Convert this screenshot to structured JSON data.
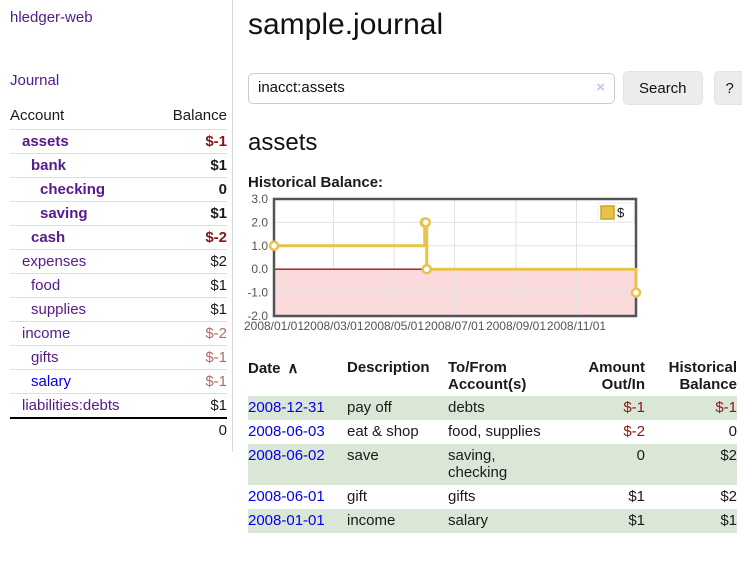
{
  "sidebar": {
    "brand": "hledger-web",
    "journal_link": "Journal",
    "accounts": {
      "col_account": "Account",
      "col_balance": "Balance",
      "rows": [
        {
          "name": "assets",
          "indent": 1,
          "bold": true,
          "balance": "$-1",
          "neg": "strong",
          "blue": false
        },
        {
          "name": "bank",
          "indent": 2,
          "bold": true,
          "balance": "$1",
          "neg": "",
          "blue": false
        },
        {
          "name": "checking",
          "indent": 3,
          "bold": true,
          "balance": "0",
          "neg": "",
          "blue": false
        },
        {
          "name": "saving",
          "indent": 3,
          "bold": true,
          "balance": "$1",
          "neg": "",
          "blue": false
        },
        {
          "name": "cash",
          "indent": 2,
          "bold": true,
          "balance": "$-2",
          "neg": "strong",
          "blue": false
        },
        {
          "name": "expenses",
          "indent": 1,
          "bold": false,
          "balance": "$2",
          "neg": "",
          "blue": false
        },
        {
          "name": "food",
          "indent": 2,
          "bold": false,
          "balance": "$1",
          "neg": "",
          "blue": false
        },
        {
          "name": "supplies",
          "indent": 2,
          "bold": false,
          "balance": "$1",
          "neg": "",
          "blue": false
        },
        {
          "name": "income",
          "indent": 1,
          "bold": false,
          "balance": "$-2",
          "neg": "soft",
          "blue": false
        },
        {
          "name": "gifts",
          "indent": 2,
          "bold": false,
          "balance": "$-1",
          "neg": "soft",
          "blue": false
        },
        {
          "name": "salary",
          "indent": 2,
          "bold": false,
          "balance": "$-1",
          "neg": "soft",
          "blue": true
        },
        {
          "name": "liabilities:debts",
          "indent": 1,
          "bold": false,
          "balance": "$1",
          "neg": "",
          "blue": false
        }
      ],
      "total": "0"
    }
  },
  "main": {
    "title": "sample.journal",
    "search": {
      "value": "inacct:assets",
      "clear_icon": "×",
      "button_label": "Search",
      "help_label": "?"
    },
    "account_heading": "assets",
    "section_label": "Historical Balance:"
  },
  "chart_data": {
    "type": "line",
    "step": true,
    "title": "Historical Balance:",
    "legend": {
      "label": "$",
      "position": "top-right"
    },
    "series": [
      {
        "name": "$",
        "color": "#e9c24a",
        "points": [
          {
            "date": "2008-01-01",
            "day": 0,
            "value": 1
          },
          {
            "date": "2008-06-01",
            "day": 152,
            "value": 2
          },
          {
            "date": "2008-06-02",
            "day": 153,
            "value": 2
          },
          {
            "date": "2008-06-03",
            "day": 154,
            "value": 0
          },
          {
            "date": "2008-12-31",
            "day": 365,
            "value": -1
          }
        ]
      }
    ],
    "x_ticks": [
      {
        "day": 0,
        "label": "2008/01/01"
      },
      {
        "day": 60,
        "label": "2008/03/01"
      },
      {
        "day": 121,
        "label": "2008/05/01"
      },
      {
        "day": 182,
        "label": "2008/07/01"
      },
      {
        "day": 244,
        "label": "2008/09/01"
      },
      {
        "day": 305,
        "label": "2008/11/01"
      }
    ],
    "y_ticks": [
      "3.0",
      "2.0",
      "1.0",
      "0.0",
      "-1.0",
      "-2.0"
    ],
    "ylim": [
      -2,
      3
    ],
    "xlim_days": [
      0,
      365
    ],
    "grid": true,
    "colors": {
      "negative_region": "#fadada",
      "zero_line": "#9c1414",
      "grid": "#e2e2e2",
      "border": "#545454",
      "tick_text": "#545454",
      "legend_border": "#c9a32c"
    }
  },
  "register": {
    "headers": {
      "date": "Date",
      "sort_icon": "∧",
      "description": "Description",
      "accounts": "To/From\nAccount(s)",
      "amount": "Amount\nOut/In",
      "balance": "Historical\nBalance"
    },
    "rows": [
      {
        "date": "2008-12-31",
        "description": "pay off",
        "accounts": [
          "debts"
        ],
        "amount": "$-1",
        "amount_neg": true,
        "balance": "$-1",
        "balance_neg": true,
        "shaded": true
      },
      {
        "date": "2008-06-03",
        "description": "eat & shop",
        "accounts": [
          "food, supplies"
        ],
        "amount": "$-2",
        "amount_neg": true,
        "balance": "0",
        "balance_neg": false,
        "shaded": false
      },
      {
        "date": "2008-06-02",
        "description": "save",
        "accounts": [
          "saving,",
          "checking"
        ],
        "amount": "0",
        "amount_neg": false,
        "balance": "$2",
        "balance_neg": false,
        "shaded": true
      },
      {
        "date": "2008-06-01",
        "description": "gift",
        "accounts": [
          "gifts"
        ],
        "amount": "$1",
        "amount_neg": false,
        "balance": "$2",
        "balance_neg": false,
        "shaded": false
      },
      {
        "date": "2008-01-01",
        "description": "income",
        "accounts": [
          "salary"
        ],
        "amount": "$1",
        "amount_neg": false,
        "balance": "$1",
        "balance_neg": false,
        "shaded": true
      }
    ]
  },
  "colors": {
    "accent_purple": "#551a8b",
    "link_blue": "#0000ee",
    "neg_strong": "#8b1515",
    "neg_soft": "#b56a6a",
    "row_green": "#dbe7d6",
    "chart_gold": "#e9c24a"
  }
}
